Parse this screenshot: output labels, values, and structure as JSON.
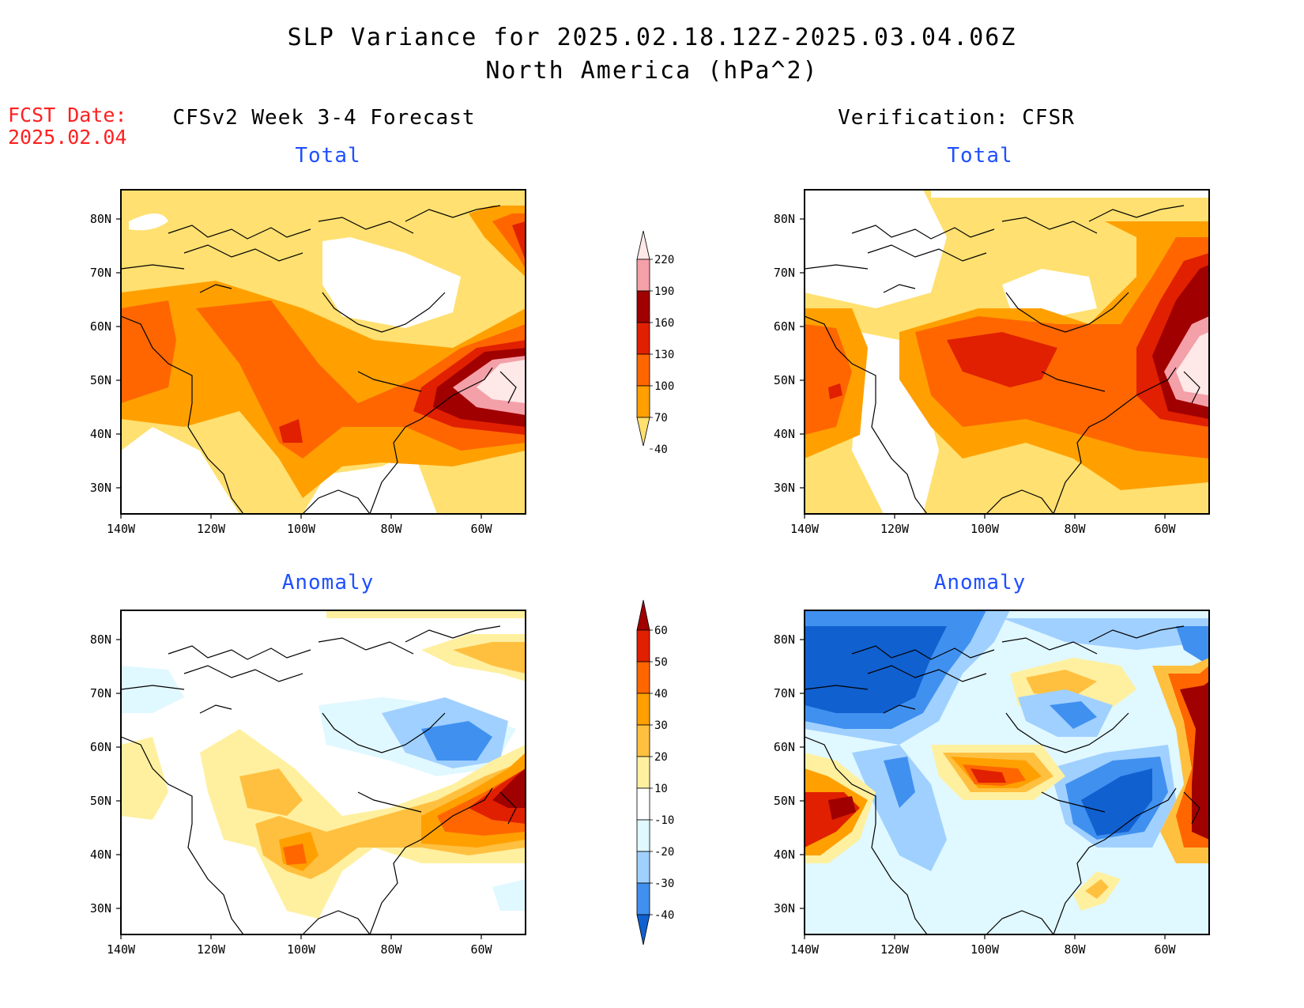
{
  "title": {
    "line1": "SLP Variance for 2025.02.18.12Z-2025.03.04.06Z",
    "line2": "North America (hPa^2)"
  },
  "fcst_date": {
    "label": "FCST Date:",
    "value": "2025.02.04"
  },
  "columns": [
    {
      "header": "CFSv2 Week 3-4 Forecast"
    },
    {
      "header": "Verification: CFSR"
    }
  ],
  "panels": [
    {
      "subtitle": "Total"
    },
    {
      "subtitle": "Total"
    },
    {
      "subtitle": "Anomaly"
    },
    {
      "subtitle": "Anomaly"
    }
  ],
  "axes": {
    "lat_ticks": [
      "80N",
      "70N",
      "60N",
      "50N",
      "40N",
      "30N"
    ],
    "lon_ticks": [
      "140W",
      "120W",
      "100W",
      "80W",
      "60W"
    ]
  },
  "colorbars": {
    "total": {
      "levels": [
        "220",
        "190",
        "160",
        "130",
        "100",
        "70",
        "40"
      ],
      "colors": [
        "#ffe8e8",
        "#f4a0a8",
        "#a00000",
        "#e02000",
        "#ff6600",
        "#ffa000",
        "#ffe070"
      ]
    },
    "anomaly": {
      "levels": [
        "60",
        "50",
        "40",
        "30",
        "20",
        "10",
        "-10",
        "-20",
        "-30",
        "-40"
      ],
      "colors": [
        "#a00000",
        "#e02000",
        "#ff6600",
        "#ffa000",
        "#ffc040",
        "#fff0a0",
        "#ffffff",
        "#e0f8ff",
        "#a0d0ff",
        "#4090f0",
        "#1060d0"
      ]
    }
  }
}
